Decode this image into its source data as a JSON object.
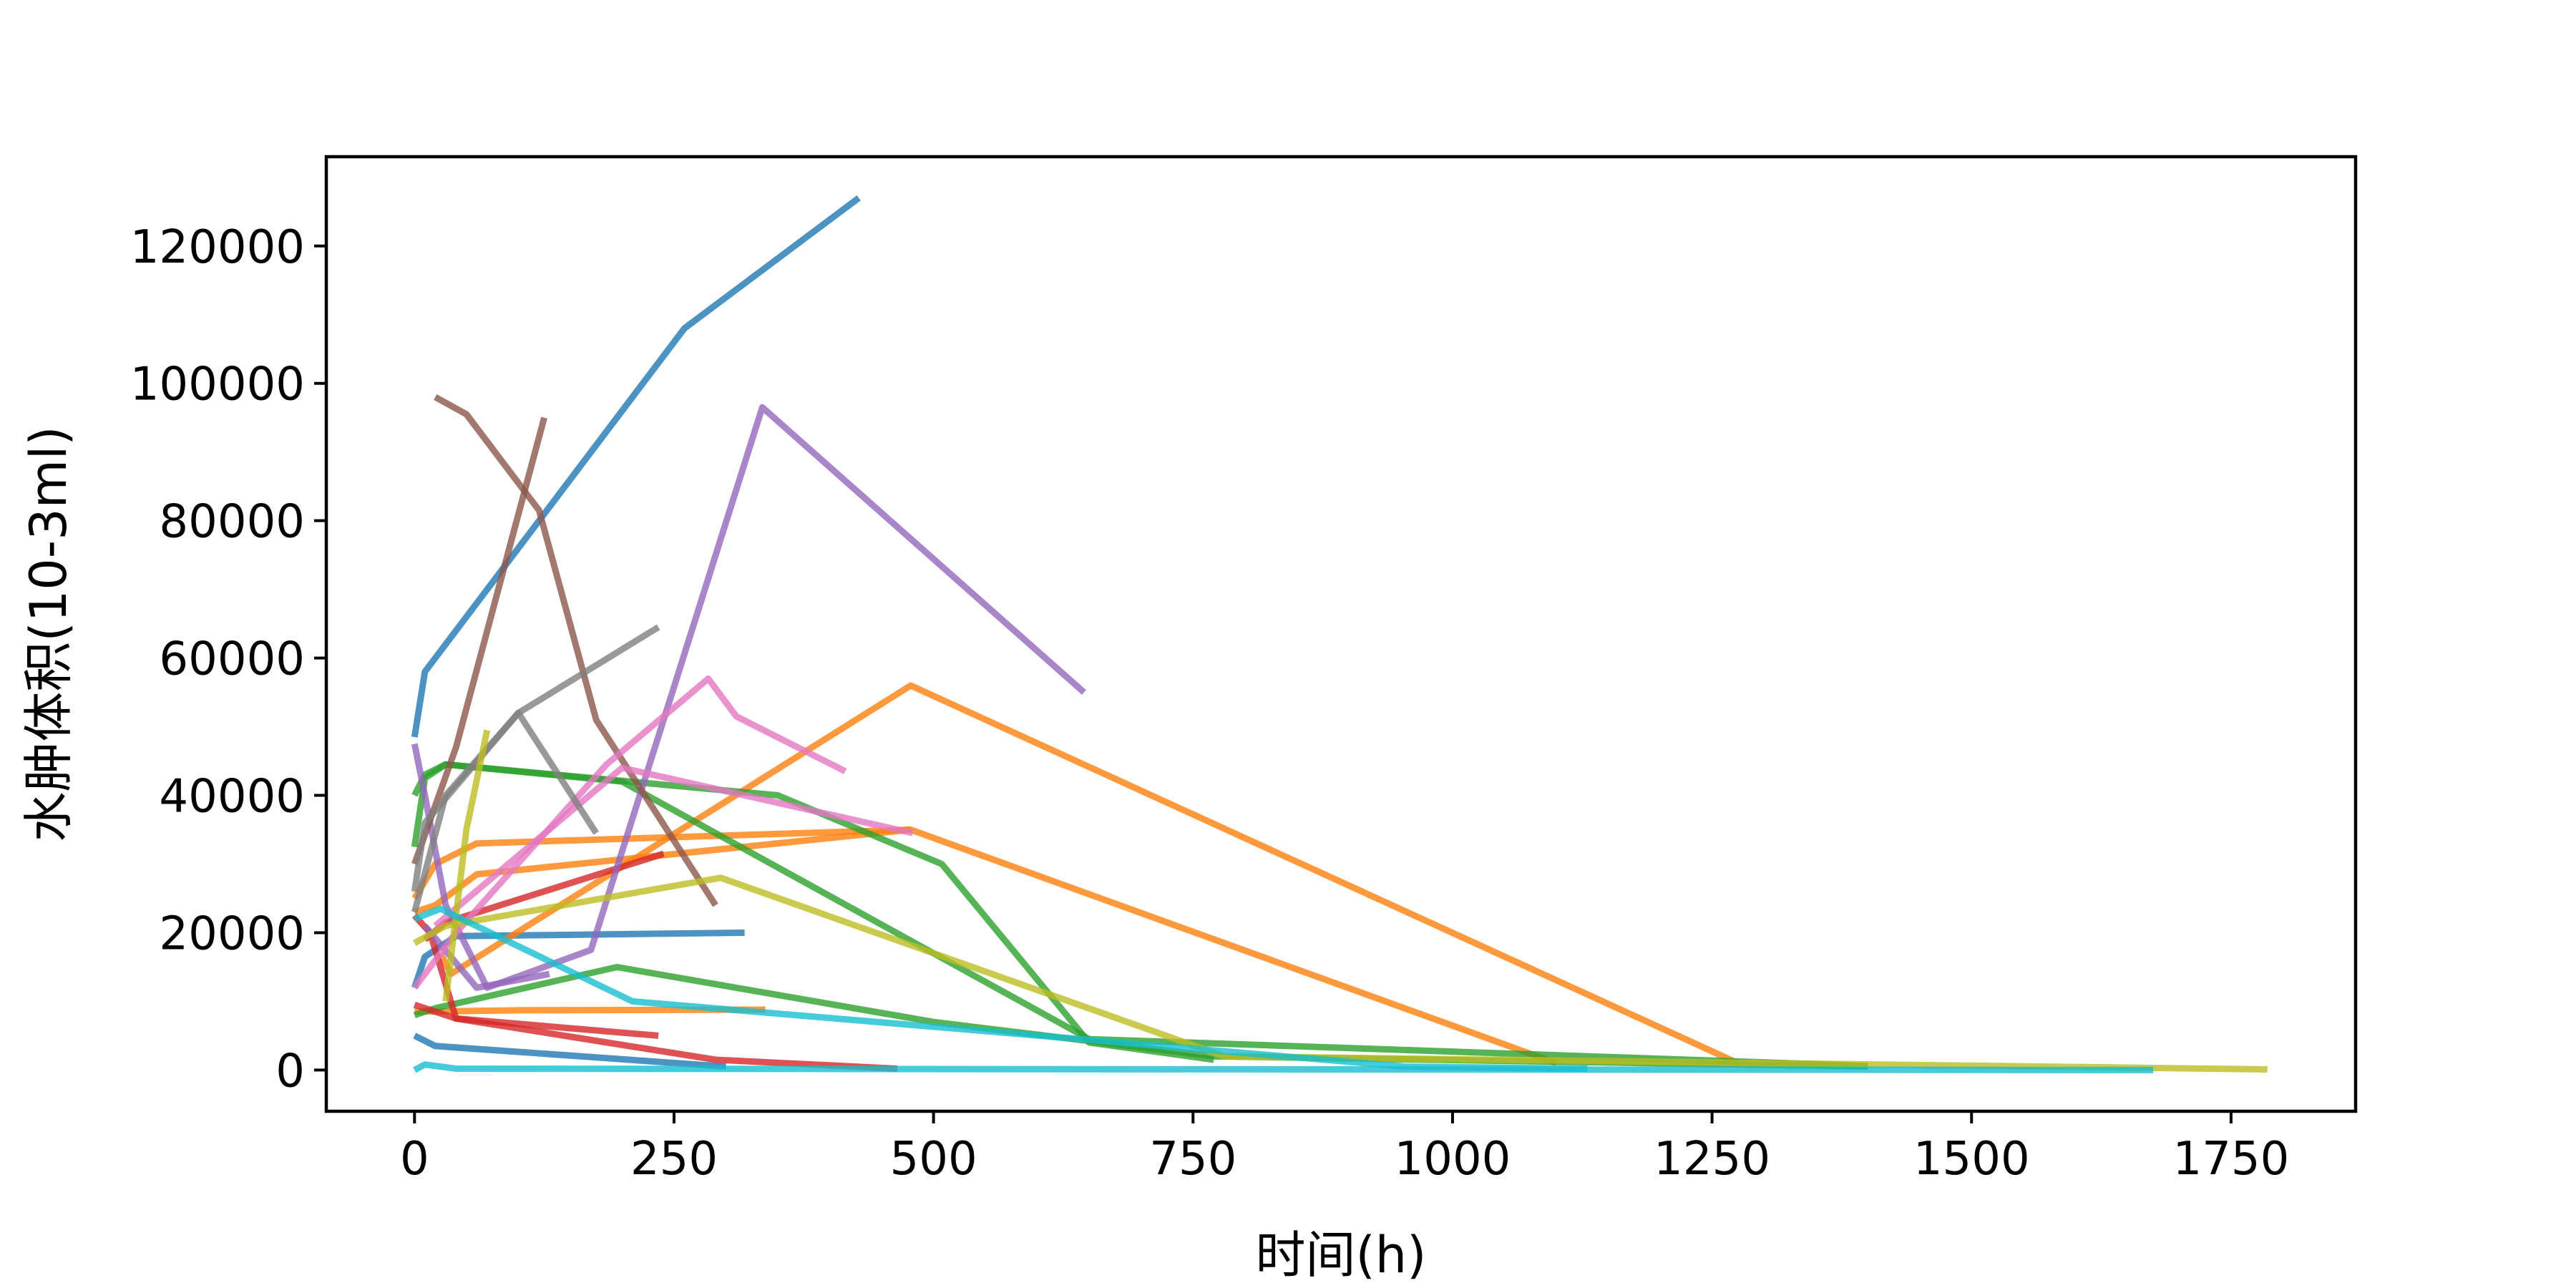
{
  "chart_data": {
    "type": "line",
    "title": "",
    "xlabel": "时间(h)",
    "ylabel": "水肿体积(10-3ml)",
    "xlim": [
      -85,
      1870
    ],
    "ylim": [
      -6000,
      133000
    ],
    "xticks": [
      0,
      250,
      500,
      750,
      1000,
      1250,
      1500,
      1750
    ],
    "yticks": [
      0,
      20000,
      40000,
      60000,
      80000,
      100000,
      120000
    ],
    "grid": false,
    "legend": "none",
    "series": [
      {
        "color": "#1f77b4",
        "points": [
          [
            0,
            48500
          ],
          [
            10,
            58000
          ],
          [
            260,
            108000
          ],
          [
            428,
            127000
          ]
        ]
      },
      {
        "color": "#1f77b4",
        "points": [
          [
            0,
            12000
          ],
          [
            10,
            16500
          ],
          [
            40,
            19500
          ],
          [
            318,
            20000
          ]
        ]
      },
      {
        "color": "#1f77b4",
        "points": [
          [
            0,
            5000
          ],
          [
            20,
            3500
          ],
          [
            300,
            500
          ]
        ]
      },
      {
        "color": "#ff7f0e",
        "points": [
          [
            0,
            23000
          ],
          [
            20,
            24000
          ],
          [
            60,
            28500
          ],
          [
            478,
            35000
          ]
        ]
      },
      {
        "color": "#ff7f0e",
        "points": [
          [
            25,
            17000
          ],
          [
            35,
            14000
          ],
          [
            478,
            56000
          ],
          [
            1275,
            1000
          ]
        ]
      },
      {
        "color": "#ff7f0e",
        "points": [
          [
            0,
            8500
          ],
          [
            100,
            8700
          ],
          [
            338,
            8800
          ]
        ]
      },
      {
        "color": "#ff7f0e",
        "points": [
          [
            0,
            25000
          ],
          [
            20,
            30000
          ],
          [
            60,
            33000
          ],
          [
            478,
            35000
          ],
          [
            1100,
            1000
          ]
        ]
      },
      {
        "color": "#2ca02c",
        "points": [
          [
            0,
            32500
          ],
          [
            10,
            42500
          ],
          [
            30,
            44500
          ],
          [
            350,
            40000
          ],
          [
            508,
            30000
          ],
          [
            650,
            4000
          ],
          [
            770,
            1500
          ]
        ]
      },
      {
        "color": "#2ca02c",
        "points": [
          [
            0,
            8000
          ],
          [
            20,
            9000
          ],
          [
            195,
            15000
          ],
          [
            500,
            7000
          ],
          [
            770,
            2000
          ],
          [
            1400,
            500
          ]
        ]
      },
      {
        "color": "#2ca02c",
        "points": [
          [
            0,
            40000
          ],
          [
            10,
            43000
          ],
          [
            30,
            44500
          ],
          [
            200,
            42000
          ],
          [
            650,
            4500
          ],
          [
            1400,
            600
          ]
        ]
      },
      {
        "color": "#d62728",
        "points": [
          [
            0,
            22500
          ],
          [
            15,
            20000
          ],
          [
            40,
            7500
          ],
          [
            235,
            5000
          ]
        ]
      },
      {
        "color": "#d62728",
        "points": [
          [
            0,
            9500
          ],
          [
            40,
            7500
          ],
          [
            290,
            1500
          ],
          [
            465,
            200
          ]
        ]
      },
      {
        "color": "#d62728",
        "points": [
          [
            10,
            19000
          ],
          [
            30,
            21500
          ],
          [
            240,
            31500
          ]
        ]
      },
      {
        "color": "#9467bd",
        "points": [
          [
            0,
            47500
          ],
          [
            10,
            40000
          ],
          [
            30,
            24000
          ],
          [
            70,
            12000
          ],
          [
            170,
            17500
          ],
          [
            335,
            96500
          ],
          [
            645,
            55000
          ]
        ]
      },
      {
        "color": "#9467bd",
        "points": [
          [
            10,
            21000
          ],
          [
            60,
            12000
          ],
          [
            130,
            14000
          ]
        ]
      },
      {
        "color": "#8c564b",
        "points": [
          [
            0,
            30000
          ],
          [
            40,
            47000
          ],
          [
            125,
            95000
          ]
        ]
      },
      {
        "color": "#8c564b",
        "points": [
          [
            20,
            98000
          ],
          [
            50,
            95500
          ],
          [
            120,
            81500
          ],
          [
            175,
            51000
          ],
          [
            290,
            24000
          ]
        ]
      },
      {
        "color": "#e377c2",
        "points": [
          [
            0,
            12000
          ],
          [
            40,
            20000
          ],
          [
            185,
            44500
          ],
          [
            283,
            57000
          ],
          [
            310,
            51500
          ],
          [
            415,
            43500
          ]
        ]
      },
      {
        "color": "#e377c2",
        "points": [
          [
            20,
            21000
          ],
          [
            200,
            44000
          ],
          [
            480,
            34500
          ]
        ]
      },
      {
        "color": "#7f7f7f",
        "points": [
          [
            0,
            23000
          ],
          [
            30,
            40000
          ],
          [
            100,
            52000
          ],
          [
            235,
            64500
          ]
        ]
      },
      {
        "color": "#7f7f7f",
        "points": [
          [
            0,
            26000
          ],
          [
            10,
            36000
          ],
          [
            100,
            52000
          ],
          [
            175,
            34500
          ]
        ]
      },
      {
        "color": "#bcbd22",
        "points": [
          [
            0,
            18500
          ],
          [
            30,
            21000
          ],
          [
            295,
            28000
          ],
          [
            780,
            2000
          ],
          [
            1785,
            100
          ]
        ]
      },
      {
        "color": "#bcbd22",
        "points": [
          [
            30,
            10000
          ],
          [
            50,
            35000
          ],
          [
            70,
            49500
          ]
        ]
      },
      {
        "color": "#17becf",
        "points": [
          [
            0,
            22000
          ],
          [
            25,
            23500
          ],
          [
            210,
            10000
          ],
          [
            955,
            500
          ],
          [
            1130,
            200
          ]
        ]
      },
      {
        "color": "#17becf",
        "points": [
          [
            0,
            0
          ],
          [
            10,
            800
          ],
          [
            40,
            200
          ],
          [
            1675,
            0
          ]
        ]
      }
    ]
  }
}
